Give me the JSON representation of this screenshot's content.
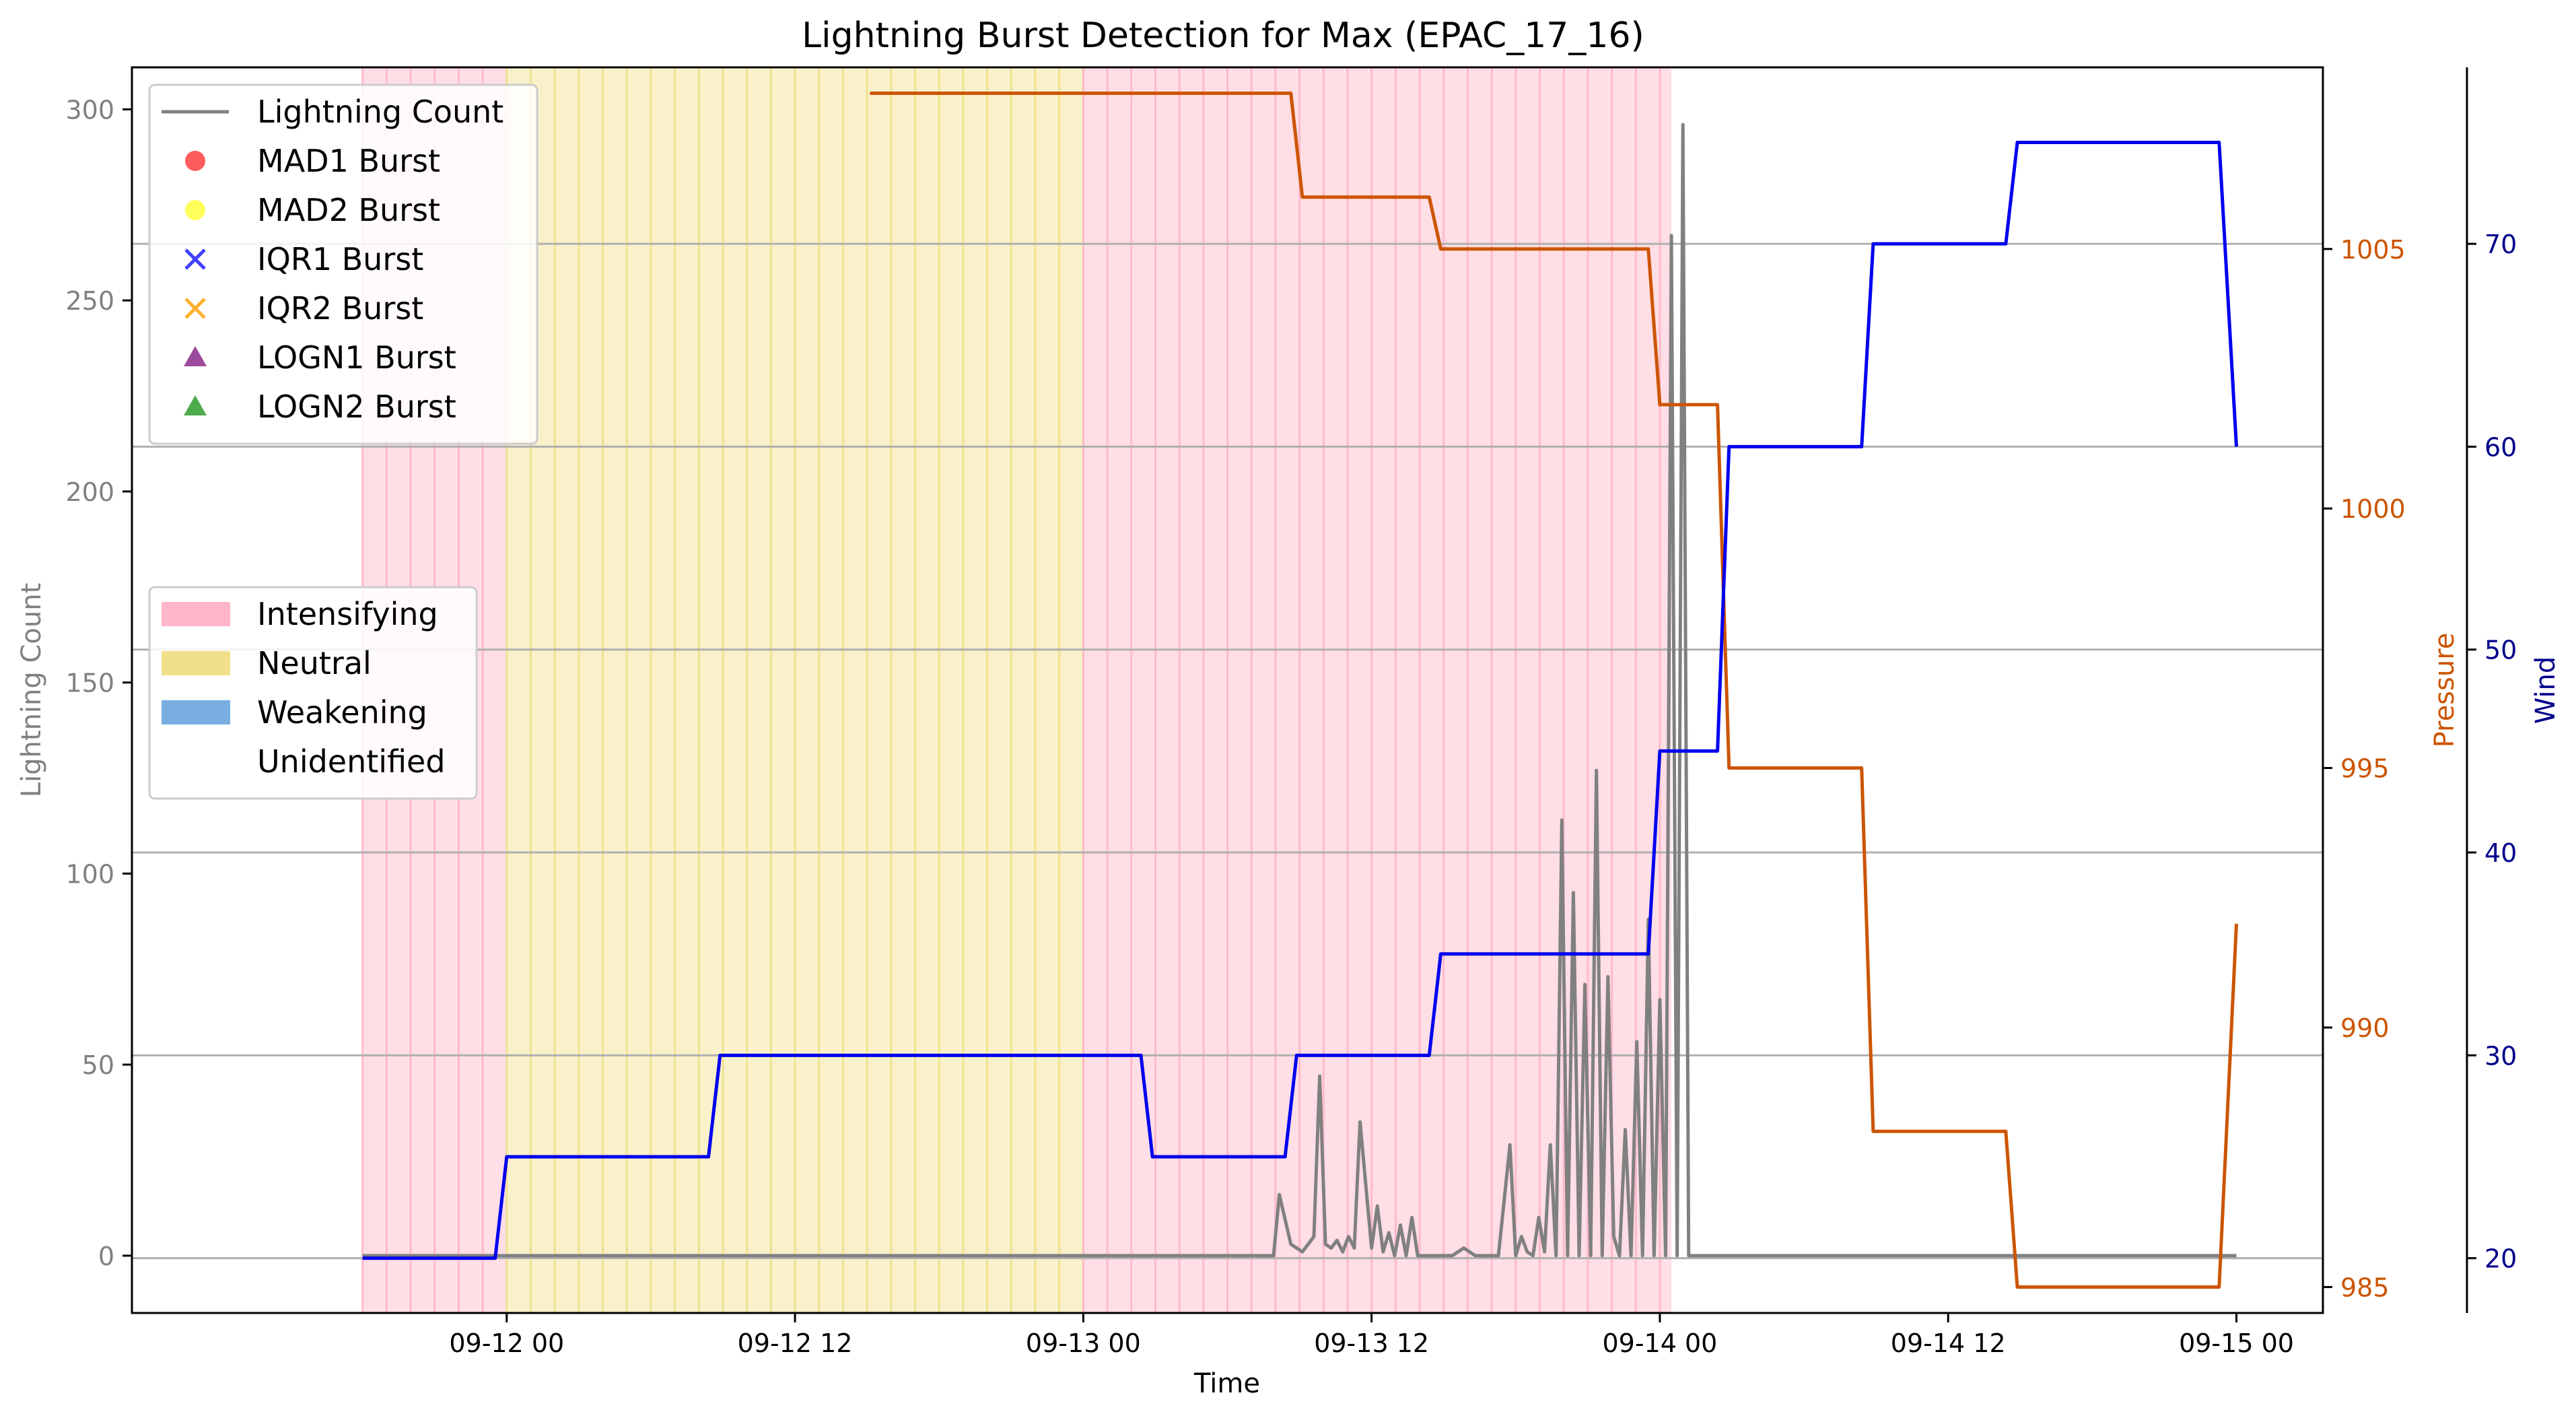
{
  "chart_data": {
    "type": "line",
    "title": "Lightning Burst Detection for Max (EPAC_17_16)",
    "xlabel": "Time",
    "ylabel": "Lightning Count",
    "ylabel_pressure": "Pressure",
    "ylabel_wind": "Wind",
    "xlim": [
      -0.65,
      3.15
    ],
    "ylim": [
      -15,
      311
    ],
    "pressure_ylim": [
      984.5,
      1008.5
    ],
    "wind_ylim": [
      17.3,
      78.7
    ],
    "x_ticks": [
      {
        "value": 0,
        "label": "09-12 00"
      },
      {
        "value": 0.5,
        "label": "09-12 12"
      },
      {
        "value": 1,
        "label": "09-13 00"
      },
      {
        "value": 1.5,
        "label": "09-13 12"
      },
      {
        "value": 2,
        "label": "09-14 00"
      },
      {
        "value": 2.5,
        "label": "09-14 12"
      },
      {
        "value": 3,
        "label": "09-15 00"
      }
    ],
    "y_ticks": [
      0,
      50,
      100,
      150,
      200,
      250,
      300
    ],
    "pressure_ticks": [
      985,
      990,
      995,
      1000,
      1005
    ],
    "wind_ticks": [
      20,
      30,
      40,
      50,
      60,
      70
    ],
    "grid": "horizontal lines at wind ticks",
    "colors": {
      "lightning": "#808080",
      "pressure": "#cc5500",
      "wind": "#0000ee",
      "intensifying": "#ffb6c8",
      "neutral": "#f0e08a",
      "weakening": "#79aee0",
      "axis_pressure_text": "#cc5500",
      "axis_wind_text": "#00008b"
    },
    "phases": [
      {
        "phase": "Intensifying",
        "start": -0.25,
        "end": 0
      },
      {
        "phase": "Neutral",
        "start": 0,
        "end": 1
      },
      {
        "phase": "Intensifying",
        "start": 1,
        "end": 2.02
      }
    ],
    "series": [
      {
        "name": "Lightning Count",
        "axis": "left",
        "color": "#808080",
        "x": [
          -0.25,
          1.33,
          1.34,
          1.36,
          1.38,
          1.4,
          1.41,
          1.42,
          1.43,
          1.44,
          1.45,
          1.46,
          1.47,
          1.48,
          1.5,
          1.51,
          1.52,
          1.53,
          1.54,
          1.55,
          1.56,
          1.57,
          1.58,
          1.59,
          1.6,
          1.62,
          1.64,
          1.66,
          1.68,
          1.7,
          1.72,
          1.74,
          1.75,
          1.76,
          1.77,
          1.78,
          1.79,
          1.8,
          1.81,
          1.82,
          1.83,
          1.84,
          1.85,
          1.86,
          1.87,
          1.88,
          1.89,
          1.9,
          1.91,
          1.92,
          1.93,
          1.94,
          1.95,
          1.96,
          1.97,
          1.98,
          1.99,
          2.0,
          2.01,
          2.02,
          2.03,
          2.04,
          2.05,
          2.06,
          2.07,
          2.08,
          2.09,
          2.1,
          2.11,
          2.12,
          3.0
        ],
        "values": [
          0,
          0,
          16,
          3,
          1,
          5,
          47,
          3,
          2,
          4,
          1,
          5,
          2,
          35,
          2,
          13,
          1,
          6,
          0,
          8,
          0,
          10,
          0,
          0,
          0,
          0,
          0,
          2,
          0,
          0,
          0,
          29,
          0,
          5,
          1,
          0,
          10,
          1,
          29,
          0,
          114,
          0,
          95,
          0,
          71,
          0,
          127,
          0,
          73,
          5,
          0,
          33,
          0,
          56,
          0,
          88,
          0,
          67,
          0,
          267,
          0,
          296,
          0,
          0,
          0,
          0,
          0,
          0,
          0,
          0,
          0
        ]
      },
      {
        "name": "Pressure",
        "axis": "pressure",
        "color": "#cc5500",
        "x": [
          0.63,
          1.36,
          1.38,
          1.6,
          1.62,
          1.98,
          2.0,
          2.1,
          2.12,
          2.35,
          2.37,
          2.6,
          2.62,
          2.97,
          3.0
        ],
        "values": [
          1008,
          1008,
          1006,
          1006,
          1005,
          1005,
          1002,
          1002,
          995,
          995,
          988,
          988,
          985,
          985,
          992
        ]
      },
      {
        "name": "Wind",
        "axis": "wind",
        "color": "#0000ee",
        "x": [
          -0.25,
          -0.02,
          0.0,
          0.35,
          0.37,
          1.1,
          1.12,
          1.35,
          1.37,
          1.6,
          1.62,
          1.98,
          2.0,
          2.1,
          2.12,
          2.35,
          2.37,
          2.6,
          2.62,
          2.97,
          3.0
        ],
        "values": [
          20,
          20,
          25,
          25,
          30,
          30,
          25,
          25,
          30,
          30,
          35,
          35,
          45,
          45,
          60,
          60,
          70,
          70,
          75,
          75,
          60
        ]
      }
    ],
    "legend_markers": {
      "position": "upper left",
      "entries": [
        {
          "label": "Lightning Count",
          "marker": "line",
          "color": "#808080"
        },
        {
          "label": "MAD1 Burst",
          "marker": "circle",
          "color": "#ff4040"
        },
        {
          "label": "MAD2 Burst",
          "marker": "circle",
          "color": "#ffff40"
        },
        {
          "label": "IQR1 Burst",
          "marker": "x",
          "color": "#4040ff"
        },
        {
          "label": "IQR2 Burst",
          "marker": "x",
          "color": "#ffb030"
        },
        {
          "label": "LOGN1 Burst",
          "marker": "triangle",
          "color": "#8b2a8b"
        },
        {
          "label": "LOGN2 Burst",
          "marker": "triangle",
          "color": "#2e9b2e"
        }
      ]
    },
    "legend_phases": {
      "position": "center left",
      "entries": [
        {
          "label": "Intensifying",
          "color": "#ffb6c8"
        },
        {
          "label": "Neutral",
          "color": "#f0e08a"
        },
        {
          "label": "Weakening",
          "color": "#79aee0"
        },
        {
          "label": "Unidentified",
          "color": "#ffffff"
        }
      ]
    }
  }
}
